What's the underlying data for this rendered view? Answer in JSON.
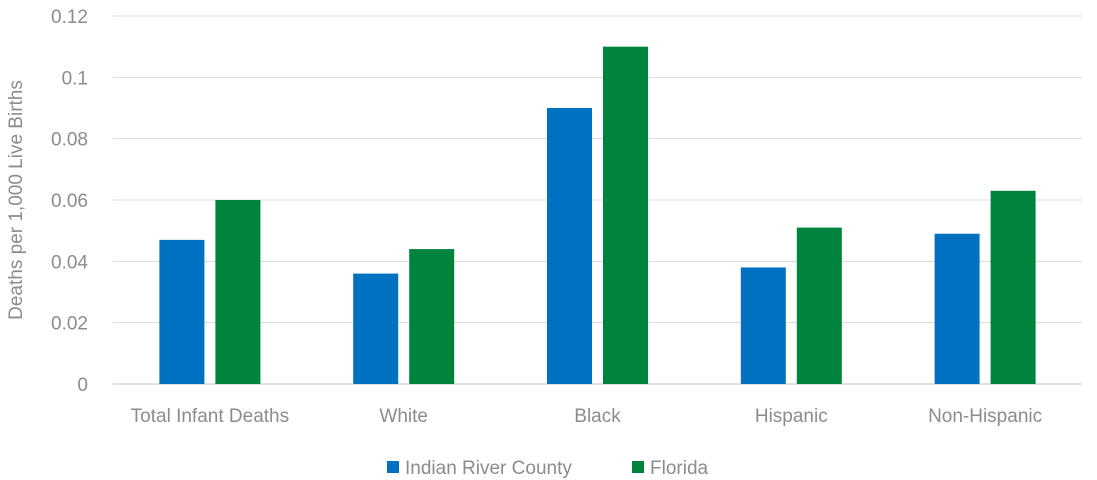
{
  "chart_data": {
    "type": "bar",
    "title": "",
    "xlabel": "",
    "ylabel": "Deaths per 1,000 Live Births",
    "categories": [
      "Total Infant Deaths",
      "White",
      "Black",
      "Hispanic",
      "Non-Hispanic"
    ],
    "series": [
      {
        "name": "Indian River County",
        "color": "#0070c0",
        "values": [
          0.047,
          0.036,
          0.09,
          0.038,
          0.049
        ]
      },
      {
        "name": "Florida",
        "color": "#00843d",
        "values": [
          0.06,
          0.044,
          0.11,
          0.051,
          0.063
        ]
      }
    ],
    "ylim": [
      0,
      0.12
    ],
    "yticks": [
      0,
      0.02,
      0.04,
      0.06,
      0.08,
      0.1,
      0.12
    ],
    "ytick_labels": [
      "0",
      "0.02",
      "0.04",
      "0.06",
      "0.08",
      "0.1",
      "0.12"
    ],
    "grid": true,
    "legend_position": "bottom-center"
  }
}
